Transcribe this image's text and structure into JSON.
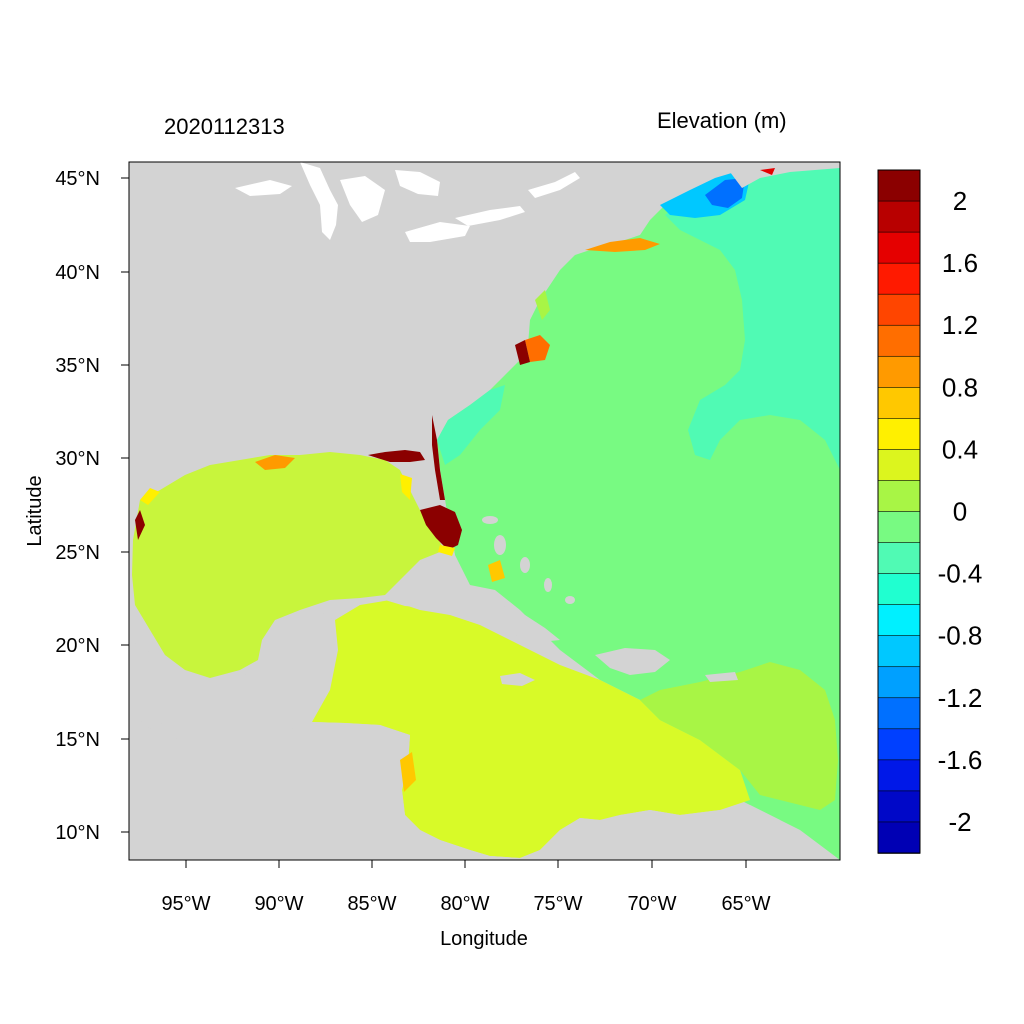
{
  "timestamp_label": "2020112313",
  "colorbar_title": "Elevation (m)",
  "x_axis_label": "Longitude",
  "y_axis_label": "Latitude",
  "lon_ticks": [
    "95°W",
    "90°W",
    "85°W",
    "80°W",
    "75°W",
    "70°W",
    "65°W"
  ],
  "lat_ticks": [
    "45°N",
    "40°N",
    "35°N",
    "30°N",
    "25°N",
    "20°N",
    "15°N",
    "10°N"
  ],
  "colorbar": {
    "colors": [
      "#8b0000",
      "#b80000",
      "#e50000",
      "#ff1a00",
      "#ff4500",
      "#ff6e00",
      "#ff9a00",
      "#ffc800",
      "#fff000",
      "#dcf51e",
      "#a8f545",
      "#78fa82",
      "#50fab4",
      "#20ffd0",
      "#00f0ff",
      "#00c8ff",
      "#00a0ff",
      "#0070ff",
      "#0040ff",
      "#0018e8",
      "#0008c8",
      "#0000b4"
    ],
    "labels": [
      "2",
      "1.6",
      "1.2",
      "0.8",
      "0.4",
      "0",
      "-0.4",
      "-0.8",
      "-1.2",
      "-1.6",
      "-2"
    ]
  },
  "legend_colors": {
    "land": "#d3d3d3",
    "open_atlantic": "#78fa82",
    "gulf": "#c8f53c",
    "caribbean": "#d8fa28",
    "negative_surge": "#00c8ff",
    "high_surge": "#8b0000"
  }
}
